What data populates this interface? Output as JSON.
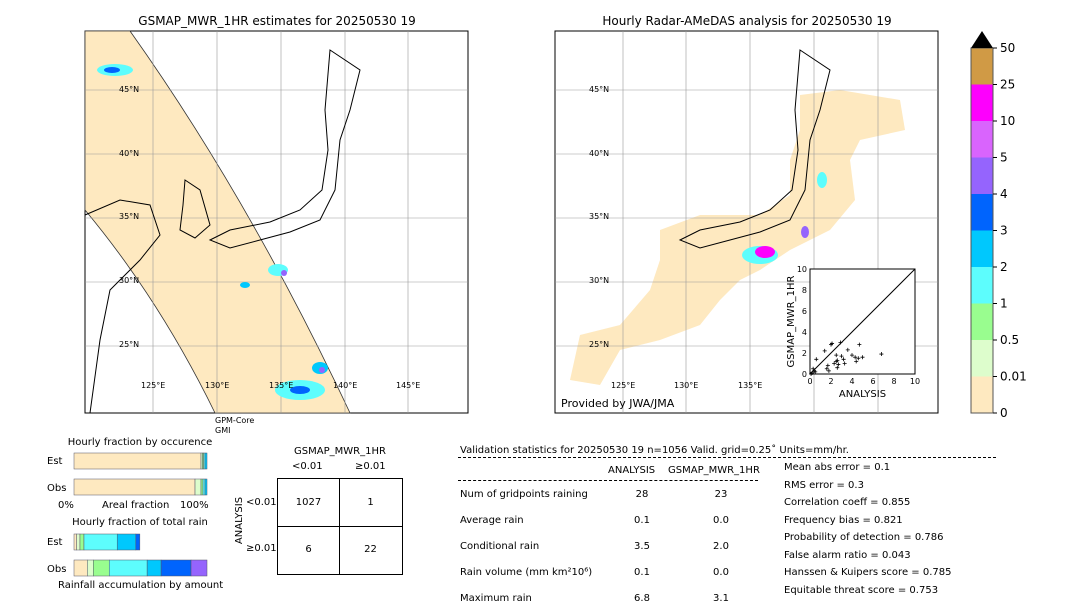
{
  "left_map": {
    "title": "GSMAP_MWR_1HR estimates for 20250530 19",
    "lat_labels": [
      "45°N",
      "40°N",
      "35°N",
      "30°N",
      "25°N"
    ],
    "lon_labels": [
      "125°E",
      "130°E",
      "135°E",
      "140°E",
      "145°E"
    ],
    "sensor_label_1": "GPM-Core",
    "sensor_label_2": "GMI"
  },
  "right_map": {
    "title": "Hourly Radar-AMeDAS analysis for 20250530 19",
    "lat_labels": [
      "45°N",
      "40°N",
      "35°N",
      "30°N",
      "25°N"
    ],
    "lon_labels": [
      "125°E",
      "130°E",
      "135°E"
    ],
    "credit": "Provided by JWA/JMA"
  },
  "colorbar": {
    "ticks": [
      "0",
      "0.01",
      "0.5",
      "1",
      "2",
      "3",
      "4",
      "5",
      "10",
      "25",
      "50"
    ],
    "colors": [
      "#fee9c0",
      "#ddfdcc",
      "#99fd8f",
      "#5dfdfd",
      "#00c8fd",
      "#0064fd",
      "#9564fd",
      "#d964fd",
      "#fd00fd",
      "#d09a45"
    ],
    "extend_color": "#000000"
  },
  "chart_data": [
    {
      "type": "scatter",
      "xlabel": "ANALYSIS",
      "ylabel": "GSMAP_MWR_1HR",
      "xlim": [
        0,
        10
      ],
      "ylim": [
        0,
        10
      ],
      "ticks": [
        "0",
        "2",
        "4",
        "6",
        "8",
        "10"
      ],
      "diagonal": true,
      "points": [
        [
          6.8,
          1.9
        ],
        [
          4.7,
          2.8
        ],
        [
          2.9,
          3.0
        ],
        [
          2.1,
          2.9
        ],
        [
          2.0,
          2.8
        ],
        [
          1.4,
          2.2
        ],
        [
          3.6,
          2.3
        ],
        [
          4.0,
          1.8
        ],
        [
          4.3,
          1.6
        ],
        [
          4.6,
          1.5
        ],
        [
          5.0,
          1.6
        ],
        [
          4.4,
          1.2
        ],
        [
          3.0,
          1.7
        ],
        [
          3.2,
          1.4
        ],
        [
          3.3,
          1.0
        ],
        [
          2.5,
          1.8
        ],
        [
          2.5,
          1.2
        ],
        [
          2.6,
          1.3
        ],
        [
          2.3,
          1.0
        ],
        [
          2.7,
          0.9
        ],
        [
          2.6,
          0.6
        ],
        [
          1.7,
          0.8
        ],
        [
          1.6,
          0.5
        ],
        [
          1.8,
          0.3
        ],
        [
          0.6,
          1.4
        ],
        [
          0.4,
          0.3
        ],
        [
          0.2,
          0.1
        ],
        [
          0.3,
          0.5
        ],
        [
          0.1,
          0.0
        ],
        [
          0.5,
          0.2
        ]
      ]
    },
    {
      "type": "bar",
      "title": "Hourly fraction by occurence",
      "xlabel": "Areal fraction",
      "x_ticks": [
        "0%",
        "100%"
      ],
      "categories": [
        "Est",
        "Obs"
      ],
      "segments": {
        "Est": [
          0.955,
          0.01,
          0.01,
          0.01,
          0.015
        ],
        "Obs": [
          0.91,
          0.045,
          0.015,
          0.015,
          0.015
        ]
      }
    },
    {
      "type": "bar",
      "title": "Hourly fraction of total rain",
      "xlabel": "Rainfall accumulation by amount",
      "categories": [
        "Est",
        "Obs"
      ],
      "segments": {
        "Est": [
          0.02,
          0.025,
          0.03,
          0.25,
          0.14,
          0.03
        ],
        "Obs": [
          0.1,
          0.045,
          0.12,
          0.285,
          0.105,
          0.225,
          0.12
        ]
      }
    },
    {
      "type": "table",
      "title": "GSMAP_MWR_1HR",
      "col_headers": [
        "<0.01",
        "≥0.01"
      ],
      "row_label": "ANALYSIS",
      "row_headers": [
        "<0.01",
        "≥0.01"
      ],
      "cells": [
        [
          "1027",
          "1"
        ],
        [
          "6",
          "22"
        ]
      ]
    }
  ],
  "stats": {
    "header": "Validation statistics for 20250530 19  n=1056 Valid. grid=0.25˚ Units=mm/hr.",
    "columns": [
      "ANALYSIS",
      "GSMAP_MWR_1HR"
    ],
    "rows": [
      {
        "label": "Num of gridpoints raining",
        "a": "28",
        "b": "23"
      },
      {
        "label": "Average rain",
        "a": "0.1",
        "b": "0.0"
      },
      {
        "label": "Conditional rain",
        "a": "3.5",
        "b": "2.0"
      },
      {
        "label": "Rain volume (mm km²10⁶)",
        "a": "0.1",
        "b": "0.0"
      },
      {
        "label": "Maximum rain",
        "a": "6.8",
        "b": "3.1"
      }
    ],
    "scores": [
      "Mean abs error =    0.1",
      "RMS error =    0.3",
      "Correlation coeff =  0.855",
      "Frequency bias =  0.821",
      "Probability of detection =  0.786",
      "False alarm ratio =  0.043",
      "Hanssen & Kuipers score =  0.785",
      "Equitable threat score =  0.753"
    ]
  }
}
